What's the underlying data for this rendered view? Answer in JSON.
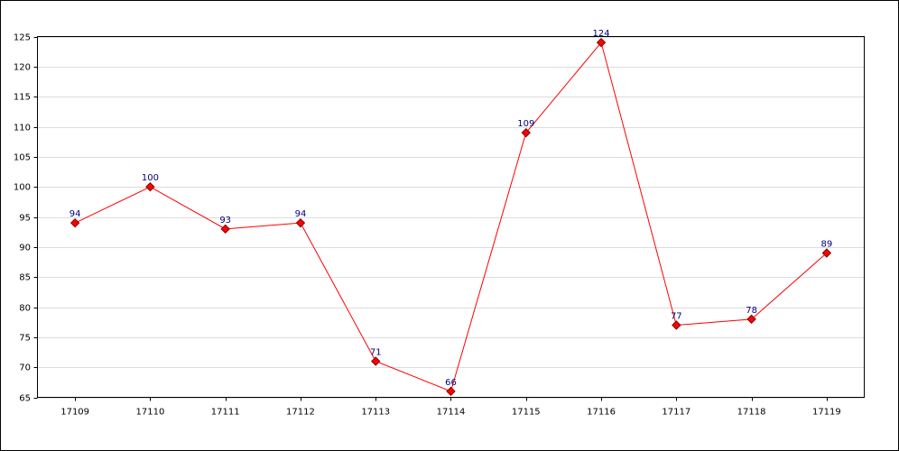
{
  "chart_data": {
    "type": "line",
    "categories": [
      "17109",
      "17110",
      "17111",
      "17112",
      "17113",
      "17114",
      "17115",
      "17116",
      "17117",
      "17118",
      "17119"
    ],
    "values": [
      94,
      100,
      93,
      94,
      71,
      66,
      109,
      124,
      77,
      78,
      89
    ],
    "color": "#ff0000",
    "ylim": [
      65,
      125
    ],
    "yticks": [
      65,
      70,
      75,
      80,
      85,
      90,
      95,
      100,
      105,
      110,
      115,
      120,
      125
    ],
    "grid": true
  }
}
